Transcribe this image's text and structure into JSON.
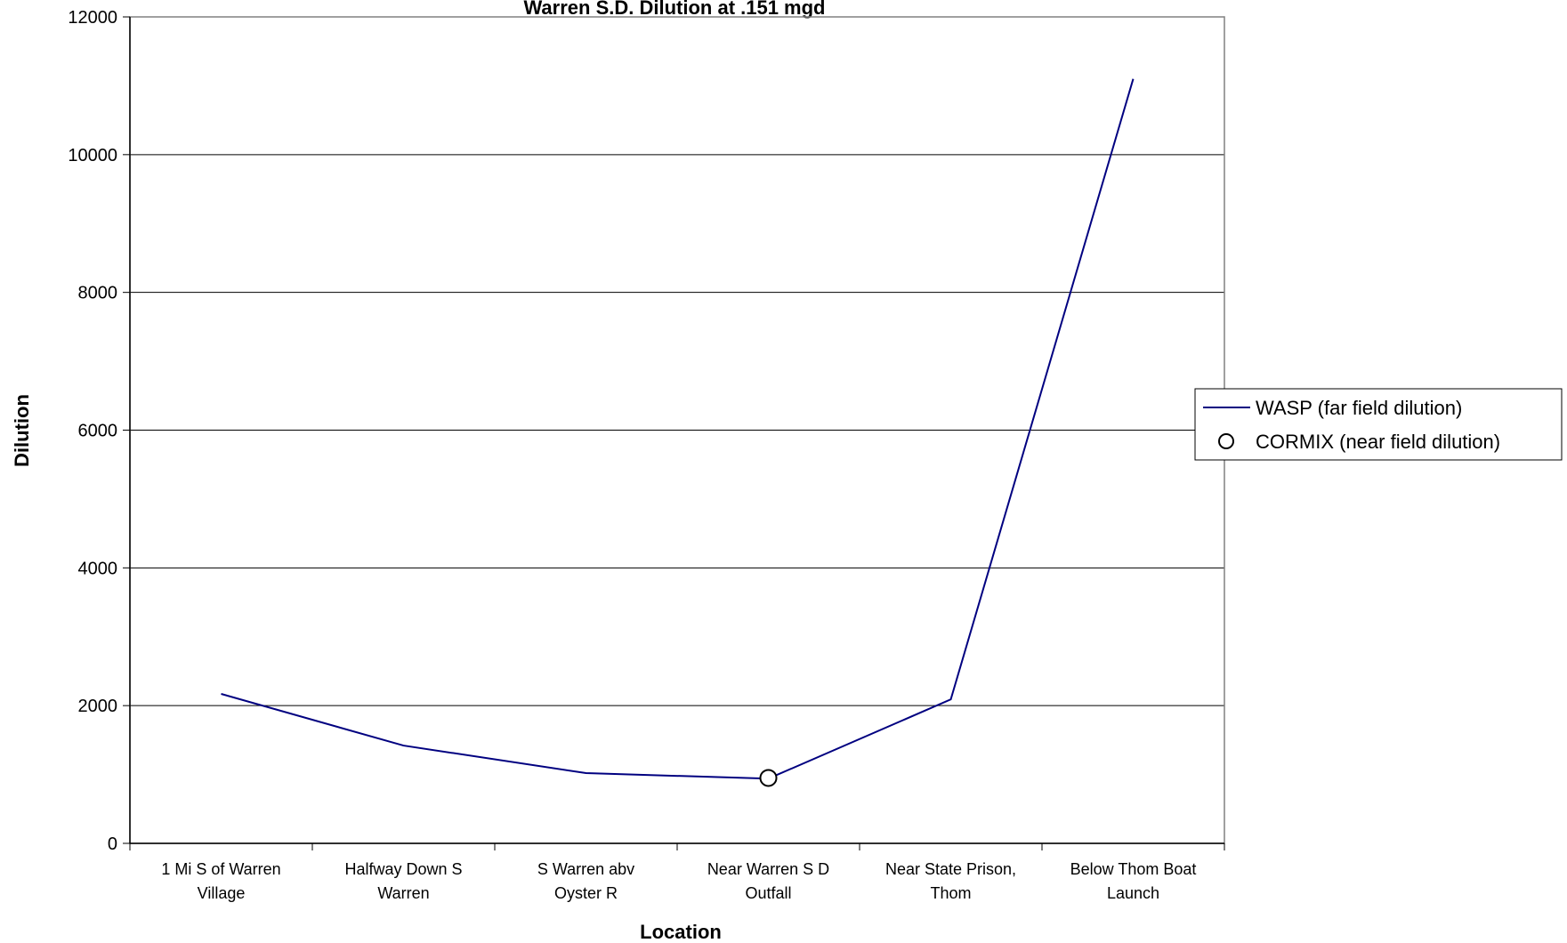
{
  "chart_data": {
    "type": "line",
    "title": "Warren S.D. Dilution at .151 mgd",
    "xlabel": "Location",
    "ylabel": "Dilution",
    "ylim": [
      0,
      12000
    ],
    "yticks": [
      0,
      2000,
      4000,
      6000,
      8000,
      10000,
      12000
    ],
    "categories": [
      [
        "1 Mi S of Warren",
        "Village"
      ],
      [
        "Halfway Down S",
        "Warren"
      ],
      [
        "S Warren abv",
        "Oyster R"
      ],
      [
        "Near Warren S D",
        "Outfall"
      ],
      [
        "Near State Prison,",
        "Thom"
      ],
      [
        "Below Thom Boat",
        "Launch"
      ]
    ],
    "grid": "horizontal",
    "legend_position": "right",
    "series": [
      {
        "name": "WASP (far field dilution)",
        "style": "line",
        "color": "#000080",
        "values": [
          2170,
          1420,
          1020,
          940,
          2090,
          11100
        ]
      },
      {
        "name": "CORMIX (near field dilution)",
        "style": "marker",
        "marker": "open-circle",
        "color": "#000000",
        "values": [
          null,
          null,
          null,
          950,
          null,
          null
        ]
      }
    ]
  }
}
